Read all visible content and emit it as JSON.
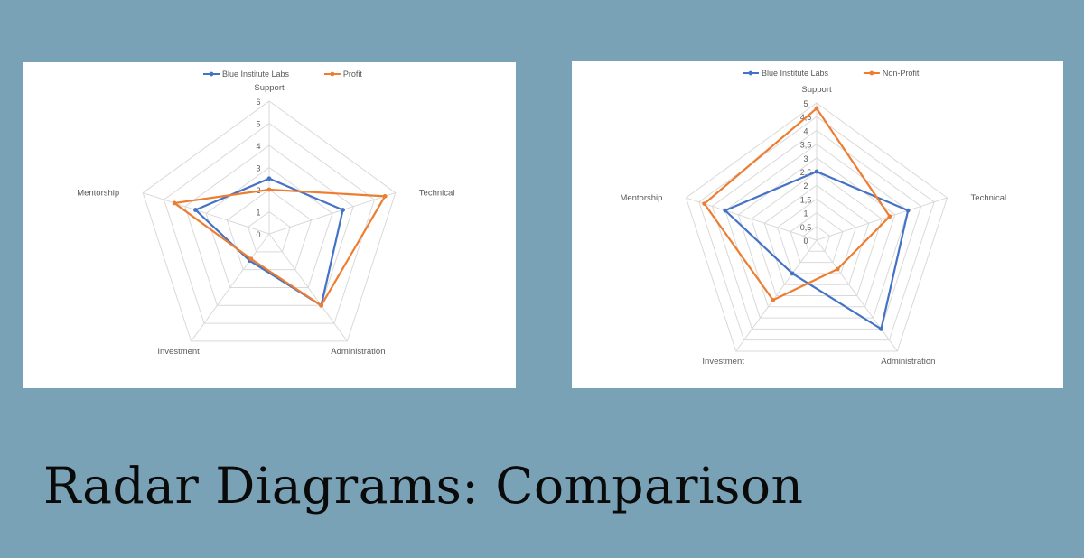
{
  "slide": {
    "title": "Radar Diagrams: Comparison"
  },
  "colors": {
    "background": "#79a2b6",
    "series_blue": "#4472c4",
    "series_orange": "#ed7d31",
    "grid": "#d9d9d9",
    "label": "#595959"
  },
  "chart_data": [
    {
      "type": "radar",
      "categories": [
        "Support",
        "Technical",
        "Administration",
        "Investment",
        "Mentorship"
      ],
      "rlim": [
        0,
        6
      ],
      "ticks": [
        "0",
        "1",
        "2",
        "3",
        "4",
        "5",
        "6"
      ],
      "grid": true,
      "legend": "top",
      "series": [
        {
          "name": "Blue Institute Labs",
          "color": "#4472c4",
          "values": [
            2.5,
            3.5,
            4.0,
            1.5,
            3.5
          ]
        },
        {
          "name": "Profit",
          "color": "#ed7d31",
          "values": [
            2.0,
            5.5,
            4.0,
            1.4,
            4.5
          ]
        }
      ]
    },
    {
      "type": "radar",
      "categories": [
        "Support",
        "Technical",
        "Administration",
        "Investment",
        "Mentorship"
      ],
      "rlim": [
        0,
        5
      ],
      "ticks": [
        "0",
        "0,5",
        "1",
        "1,5",
        "2",
        "2,5",
        "3",
        "3,5",
        "4",
        "4,5",
        "5"
      ],
      "grid": true,
      "legend": "top",
      "series": [
        {
          "name": "Blue Institute Labs",
          "color": "#4472c4",
          "values": [
            2.5,
            3.5,
            4.0,
            1.5,
            3.5
          ]
        },
        {
          "name": "Non-Profit",
          "color": "#ed7d31",
          "values": [
            4.8,
            2.8,
            1.3,
            2.7,
            4.3
          ]
        }
      ]
    }
  ]
}
